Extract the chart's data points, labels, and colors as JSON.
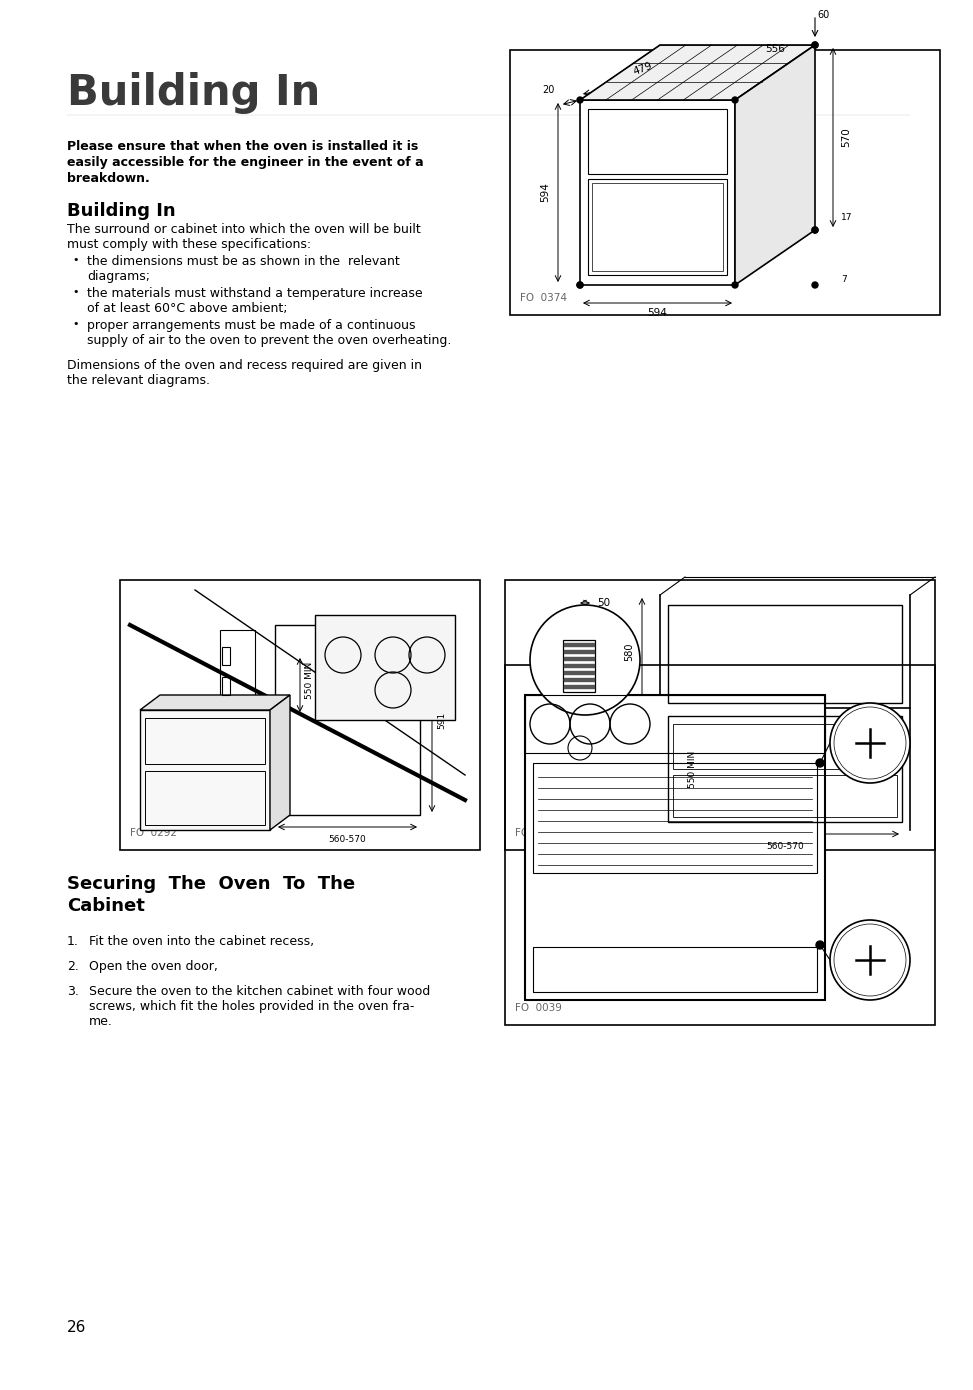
{
  "page_bg": "#ffffff",
  "main_title": "Building In",
  "section1_title": "Building In",
  "section2_title": "Securing The Oven To The\nCabinet",
  "warning_text_lines": [
    "Please ensure that when the oven is installed it is",
    "easily accessible for the engineer in the event of a",
    "breakdown."
  ],
  "body_text1_lines": [
    "The surround or cabinet into which the oven will be built",
    "must comply with these specifications:"
  ],
  "bullets": [
    [
      "the dimensions must be as shown in the  relevant",
      "diagrams;"
    ],
    [
      "the materials must withstand a temperature increase",
      "of at least 60°C above ambient;"
    ],
    [
      "proper arrangements must be made of a continuous",
      "supply of air to the oven to prevent the oven overheating."
    ]
  ],
  "body_text2_lines": [
    "Dimensions of the oven and recess required are given in",
    "the relevant diagrams."
  ],
  "numbered_list": [
    "Fit the oven into the cabinet recess,",
    "Open the oven door,",
    [
      "Secure the oven to the kitchen cabinet with four wood",
      "screws, which fit the holes provided in the oven fra-",
      "me."
    ]
  ],
  "fig_labels": [
    "FO  0374",
    "FO  0292",
    "FO  0290",
    "FO  0039"
  ],
  "page_number": "26",
  "text_color": "#000000",
  "line_color": "#000000"
}
